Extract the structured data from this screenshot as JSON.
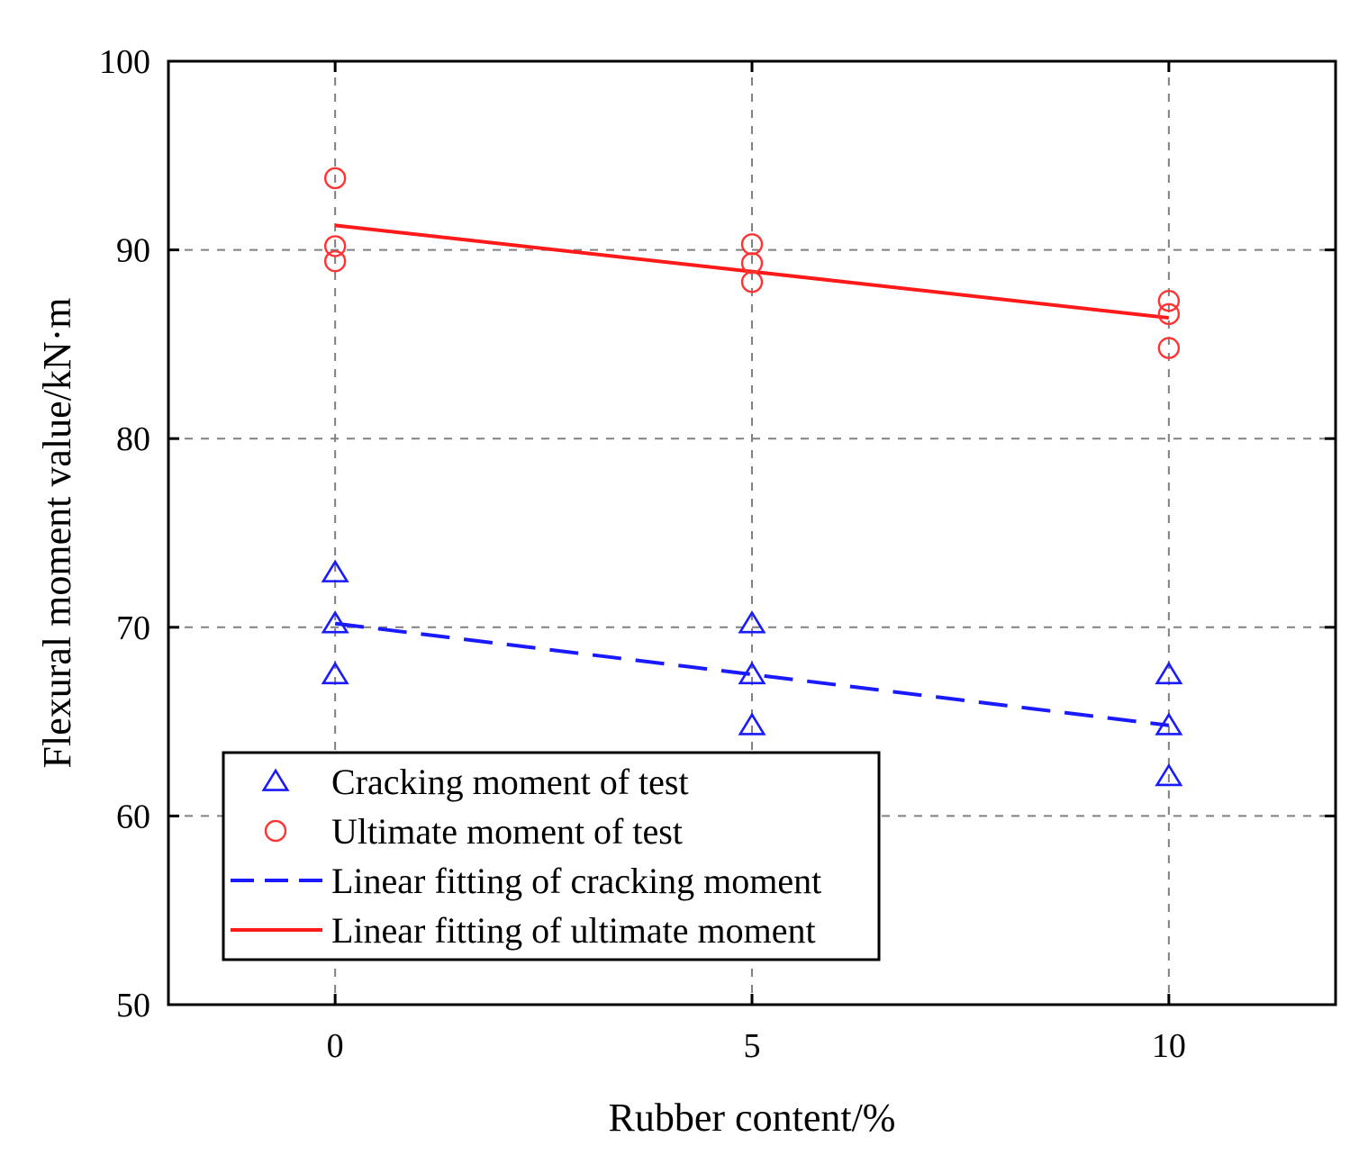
{
  "chart_data": {
    "type": "scatter",
    "xlabel": "Rubber content/%",
    "ylabel": "Flexural moment value/kN·m",
    "xlim": [
      -2,
      12
    ],
    "ylim": [
      50,
      100
    ],
    "xticks": [
      0,
      5,
      10
    ],
    "yticks": [
      50,
      60,
      70,
      80,
      90,
      100
    ],
    "grid": true,
    "legend_position": "bottom-left",
    "series": [
      {
        "name": "Cracking moment of test",
        "kind": "scatter",
        "marker": "triangle",
        "color": "#1a1aff",
        "x": [
          0,
          0,
          0,
          5,
          5,
          5,
          10,
          10,
          10
        ],
        "y": [
          72.9,
          70.2,
          67.5,
          70.2,
          67.5,
          64.8,
          67.5,
          64.8,
          62.1
        ]
      },
      {
        "name": "Ultimate moment of test",
        "kind": "scatter",
        "marker": "circle",
        "color": "#ff3333",
        "x": [
          0,
          0,
          0,
          5,
          5,
          5,
          10,
          10,
          10
        ],
        "y": [
          93.8,
          90.2,
          89.4,
          90.3,
          89.3,
          88.3,
          87.3,
          86.6,
          84.8
        ]
      },
      {
        "name": "Linear fitting of cracking moment",
        "kind": "line",
        "dash": "dashed",
        "color": "#1a1aff",
        "x": [
          0,
          10
        ],
        "y": [
          70.2,
          64.8
        ]
      },
      {
        "name": "Linear fitting of ultimate moment",
        "kind": "line",
        "dash": "solid",
        "color": "#ff1a1a",
        "x": [
          0,
          10
        ],
        "y": [
          91.3,
          86.4
        ]
      }
    ]
  }
}
